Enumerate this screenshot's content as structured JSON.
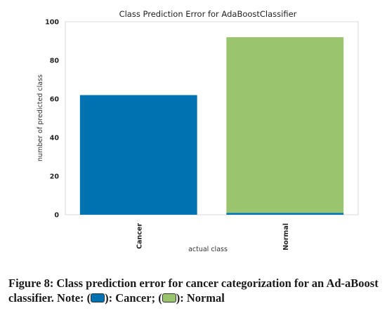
{
  "chart_data": {
    "type": "bar",
    "stacked": true,
    "title": "Class Prediction Error for AdaBoostClassifier",
    "xlabel": "actual class",
    "ylabel": "number of predicted class",
    "categories": [
      "Cancer",
      "Normal"
    ],
    "series": [
      {
        "color": "#0072b2",
        "values": [
          62,
          1
        ]
      },
      {
        "color": "#9bc46e",
        "values": [
          0,
          91
        ]
      }
    ],
    "ylim": [
      0,
      100
    ],
    "yticks": [
      0,
      20,
      40,
      60,
      80,
      100
    ],
    "grid": false,
    "legend": false
  },
  "caption": {
    "prefix": "Figure 8: Class prediction error for cancer categorization for an Ad-aBoost classifier. Note: (",
    "mid1": "): Cancer; (",
    "mid2": "): Normal",
    "cancer_color": "#0072b2",
    "normal_color": "#9bc46e"
  }
}
